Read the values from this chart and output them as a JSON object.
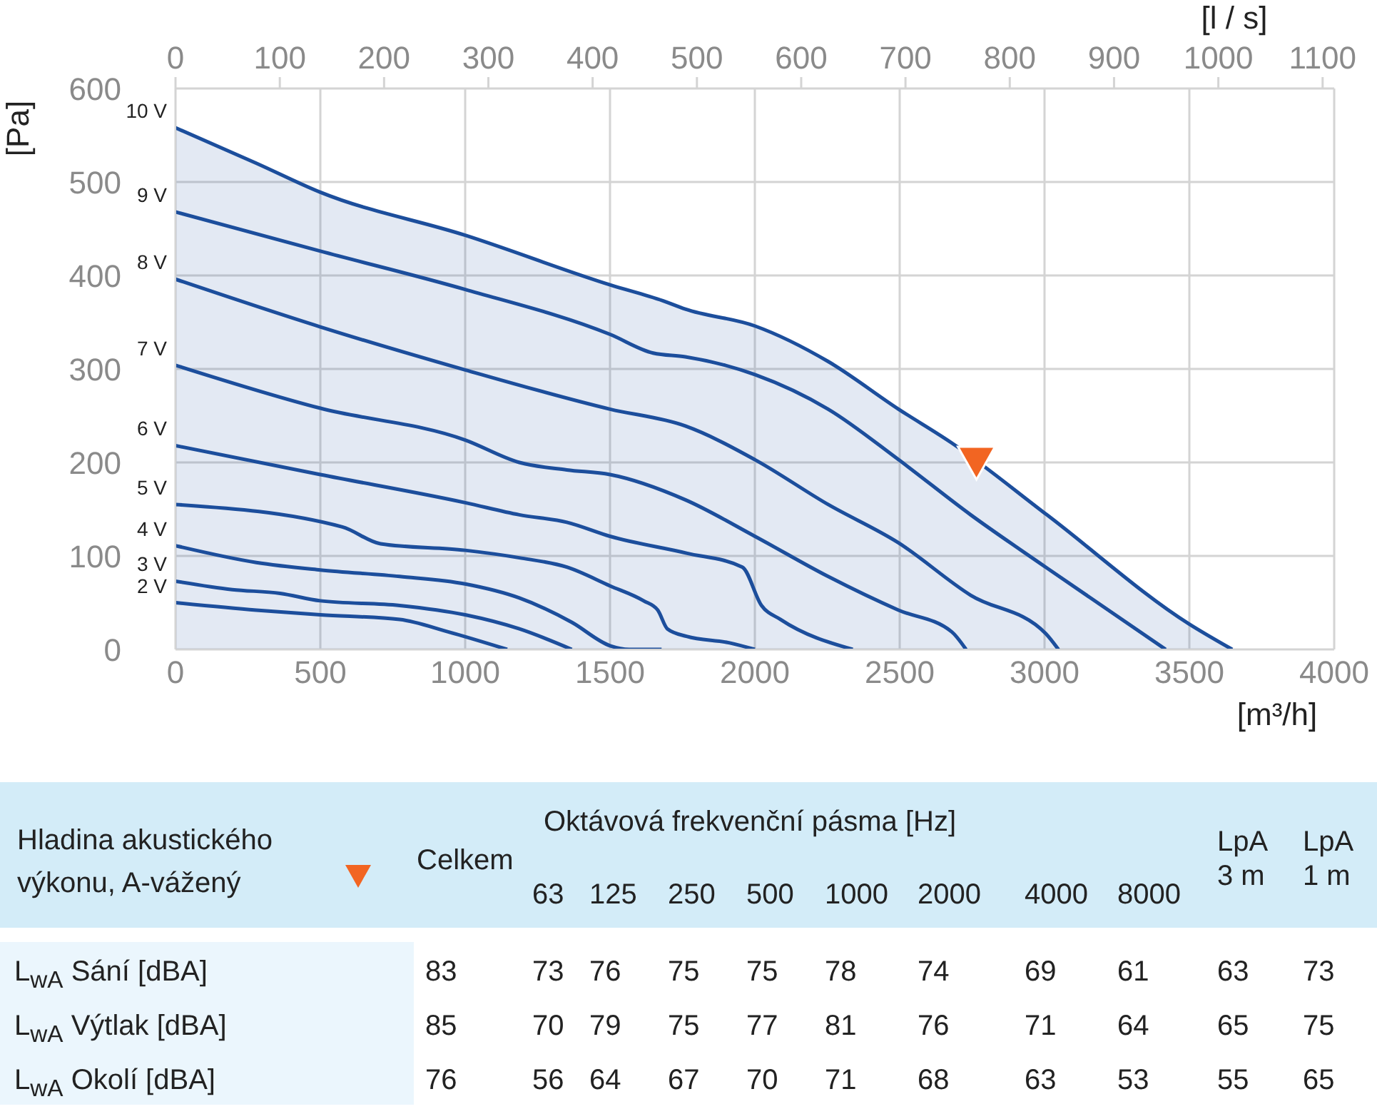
{
  "chart_data": [
    {
      "type": "line",
      "xlabel": "[m³/h]",
      "ylabel": "[Pa]",
      "x2label": "[l / s]",
      "xlim": [
        0,
        4000
      ],
      "xticks": [
        0,
        500,
        1000,
        1500,
        2000,
        2500,
        3000,
        3500,
        4000
      ],
      "x2lim": [
        0,
        1111.1
      ],
      "x2ticks": [
        0,
        100,
        200,
        300,
        400,
        500,
        600,
        700,
        800,
        900,
        1000,
        1100
      ],
      "ylim": [
        0,
        600
      ],
      "yticks": [
        0,
        100,
        200,
        300,
        400,
        500,
        600
      ],
      "grid": true,
      "legend": false,
      "series": [
        {
          "name": "10 V",
          "type": "area",
          "color": "#1c4e9c",
          "x": [
            0,
            279,
            500,
            1000,
            1500,
            1682,
            1760,
            2000,
            2253,
            2496,
            2679,
            3008,
            3500,
            3648
          ],
          "values": [
            558,
            520,
            489,
            443,
            390,
            373,
            364,
            346,
            308,
            257,
            221,
            144,
            27,
            0
          ]
        },
        {
          "name": "9 V",
          "color": "#1c4e9c",
          "x": [
            0,
            500,
            1000,
            1500,
            1649,
            1760,
            2000,
            2253,
            2496,
            2745,
            3004,
            3418
          ],
          "values": [
            468,
            426,
            385,
            337,
            317,
            313,
            294,
            257,
            203,
            144,
            88,
            0
          ]
        },
        {
          "name": "8 V",
          "color": "#1c4e9c",
          "x": [
            0,
            500,
            1000,
            1500,
            1760,
            2000,
            2253,
            2496,
            2745,
            3004,
            3048
          ],
          "values": [
            396,
            345,
            299,
            257,
            239,
            203,
            155,
            114,
            58,
            17,
            0
          ]
        },
        {
          "name": "7 V",
          "color": "#1c4e9c",
          "x": [
            0,
            500,
            1000,
            1187,
            1351,
            1500,
            1760,
            2000,
            2253,
            2496,
            2679,
            2729
          ],
          "values": [
            304,
            258,
            224,
            200,
            192,
            187,
            160,
            121,
            78,
            42,
            19,
            0
          ]
        },
        {
          "name": "6 V",
          "color": "#1c4e9c",
          "x": [
            0,
            500,
            1000,
            1187,
            1351,
            1500,
            1764,
            1957,
            2023,
            2089,
            2338
          ],
          "values": [
            218,
            187,
            157,
            144,
            136,
            121,
            103,
            88,
            47,
            32,
            0
          ]
        },
        {
          "name": "5 V",
          "color": "#1c4e9c",
          "x": [
            0,
            576,
            708,
            1000,
            1187,
            1351,
            1500,
            1616,
            1665,
            1698,
            1764,
            1913,
            2000
          ],
          "values": [
            155,
            131,
            113,
            106,
            98,
            88,
            68,
            52,
            42,
            22,
            14,
            7,
            0
          ]
        },
        {
          "name": "4 V",
          "color": "#1c4e9c",
          "x": [
            0,
            279,
            500,
            774,
            1000,
            1187,
            1368,
            1500,
            1566,
            1678
          ],
          "values": [
            111,
            93,
            85,
            78,
            70,
            55,
            29,
            4,
            0,
            0
          ]
        },
        {
          "name": "3 V",
          "color": "#1c4e9c",
          "x": [
            0,
            196,
            361,
            500,
            774,
            1000,
            1187,
            1368
          ],
          "values": [
            73,
            64,
            60,
            52,
            47,
            37,
            22,
            0
          ]
        },
        {
          "name": "2 V",
          "color": "#1c4e9c",
          "x": [
            0,
            279,
            500,
            774,
            939,
            1145
          ],
          "values": [
            50,
            42,
            37,
            32,
            19,
            0
          ]
        },
        {
          "type": "scatter",
          "marker": "triangle",
          "color": "#f26522",
          "x": [
            2765
          ],
          "values": [
            200
          ]
        }
      ]
    },
    {
      "type": "other",
      "title": "Hladina akustického výkonu, A-vážený",
      "xlabel": "Oktávová frekvenční pásma [Hz]",
      "categories": [
        "Celkem",
        "63",
        "125",
        "250",
        "500",
        "1000",
        "2000",
        "4000",
        "8000",
        "LpA 3 m",
        "LpA 1 m"
      ],
      "annotations": [
        "L$_{wA}$ Sání [dBA]",
        "83",
        "73",
        "76",
        "75",
        "75",
        "78",
        "74",
        "69",
        "61",
        "63",
        "73",
        "L$_{wA}$ Výtlak [dBA]",
        "85",
        "70",
        "79",
        "75",
        "77",
        "81",
        "76",
        "71",
        "64",
        "65",
        "75",
        "L$_{wA}$ Okolí [dBA]",
        "76",
        "56",
        "64",
        "67",
        "70",
        "71",
        "68",
        "63",
        "53",
        "55",
        "65"
      ]
    }
  ]
}
